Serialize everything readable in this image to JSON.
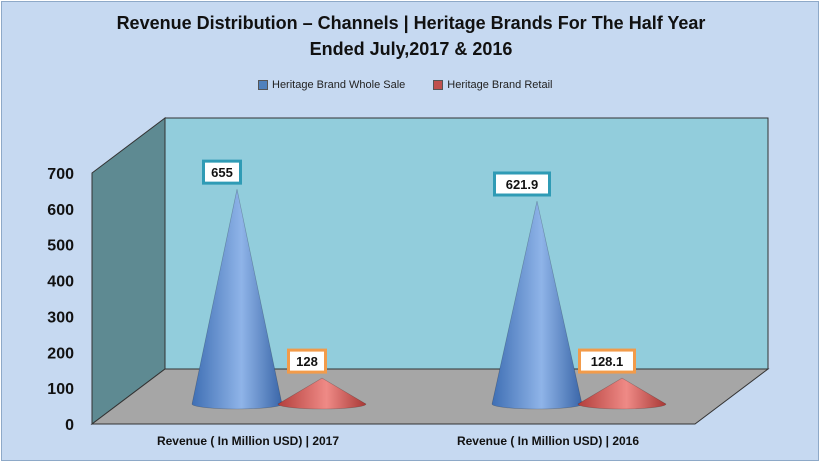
{
  "chart_data": {
    "type": "bar",
    "shape": "3d-cone",
    "title": "Revenue Distribution  – Channels  | Heritage Brands For The Half Year\nEnded July,2017 & 2016",
    "categories": [
      "Revenue ( In Million USD) | 2017",
      "Revenue ( In Million USD) | 2016"
    ],
    "series": [
      {
        "name": "Heritage Brand Whole Sale",
        "values": [
          655,
          621.9
        ],
        "color": "#4f81bd"
      },
      {
        "name": "Heritage Brand Retail",
        "values": [
          128,
          128.1
        ],
        "color": "#c0504d"
      }
    ],
    "data_labels": [
      [
        "655",
        "621.9"
      ],
      [
        "128",
        "128.1"
      ]
    ],
    "yticks": [
      "0",
      "100",
      "200",
      "300",
      "400",
      "500",
      "600",
      "700"
    ],
    "ylim": [
      0,
      700
    ],
    "legend_position": "top",
    "colors": {
      "background": "#c6d9f1",
      "back_wall": "#92cddc",
      "side_wall": "#5e8a92",
      "floor": "#a6a6a6"
    }
  }
}
